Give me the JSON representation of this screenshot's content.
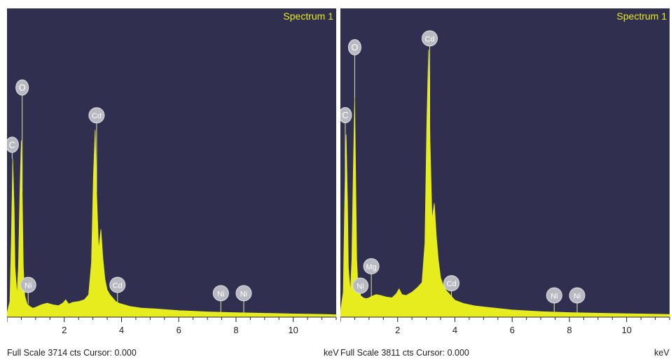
{
  "colors": {
    "background": "#312f4f",
    "spectrum": "#e6ec1e",
    "peak_line": "#d9eba0",
    "marker_fill": "#b9b9c1",
    "marker_text": "#ffffff",
    "spectrum_label": "#e6ec1e",
    "axis": "#222222"
  },
  "chart_data": [
    {
      "type": "area",
      "title": "Spectrum 1",
      "xlabel": "keV",
      "xlim": [
        0,
        11.5
      ],
      "xticks": [
        2,
        4,
        6,
        8,
        10
      ],
      "ylim": [
        0,
        3714
      ],
      "footer": "Full Scale 3714 cts Cursor: 0.000",
      "x": [
        0.0,
        0.1,
        0.15,
        0.2,
        0.25,
        0.28,
        0.35,
        0.4,
        0.45,
        0.5,
        0.53,
        0.57,
        0.62,
        0.7,
        0.8,
        0.9,
        1.0,
        1.2,
        1.4,
        1.6,
        1.8,
        1.95,
        2.05,
        2.15,
        2.3,
        2.5,
        2.7,
        2.85,
        2.95,
        3.02,
        3.08,
        3.13,
        3.2,
        3.28,
        3.35,
        3.42,
        3.5,
        3.6,
        3.7,
        3.8,
        3.9,
        4.0,
        4.3,
        4.7,
        5.2,
        6.0,
        7.0,
        8.0,
        9.0,
        10.0,
        11.0,
        11.5
      ],
      "y": [
        40,
        180,
        900,
        1900,
        1300,
        600,
        250,
        600,
        1500,
        2120,
        1500,
        600,
        250,
        150,
        120,
        100,
        110,
        140,
        160,
        140,
        130,
        160,
        200,
        150,
        170,
        180,
        200,
        260,
        650,
        1700,
        2250,
        1500,
        800,
        1050,
        700,
        450,
        320,
        260,
        220,
        180,
        160,
        150,
        120,
        100,
        90,
        70,
        55,
        45,
        38,
        30,
        25,
        20
      ],
      "markers": [
        {
          "label": "C",
          "x": 0.18,
          "y": 2070
        },
        {
          "label": "O",
          "x": 0.53,
          "y": 2760
        },
        {
          "label": "Cd",
          "x": 3.13,
          "y": 2425
        },
        {
          "label": "Ni",
          "x": 0.74,
          "y": 380
        },
        {
          "label": "Cd",
          "x": 3.86,
          "y": 380
        },
        {
          "label": "Ni",
          "x": 7.47,
          "y": 280
        },
        {
          "label": "Ni",
          "x": 8.27,
          "y": 280
        }
      ]
    },
    {
      "type": "area",
      "title": "Spectrum 1",
      "xlabel": "keV",
      "xlim": [
        0,
        11.5
      ],
      "xticks": [
        2,
        4,
        6,
        8,
        10
      ],
      "ylim": [
        0,
        3811
      ],
      "footer": "Full Scale 3811 cts Cursor: 0.000",
      "x": [
        0.0,
        0.1,
        0.15,
        0.2,
        0.25,
        0.28,
        0.35,
        0.4,
        0.45,
        0.5,
        0.53,
        0.57,
        0.62,
        0.7,
        0.8,
        0.9,
        1.0,
        1.1,
        1.25,
        1.4,
        1.6,
        1.8,
        1.95,
        2.05,
        2.15,
        2.3,
        2.5,
        2.7,
        2.85,
        2.95,
        3.02,
        3.08,
        3.13,
        3.2,
        3.28,
        3.35,
        3.42,
        3.5,
        3.6,
        3.7,
        3.8,
        3.9,
        4.0,
        4.3,
        4.7,
        5.2,
        6.0,
        7.0,
        8.0,
        9.0,
        10.0,
        11.0,
        11.5
      ],
      "y": [
        60,
        300,
        1400,
        2250,
        1400,
        600,
        300,
        700,
        1800,
        2700,
        1800,
        700,
        350,
        260,
        230,
        220,
        230,
        250,
        270,
        260,
        240,
        230,
        280,
        340,
        270,
        260,
        300,
        360,
        420,
        900,
        2400,
        3300,
        2200,
        1200,
        1400,
        1000,
        700,
        480,
        380,
        320,
        280,
        240,
        200,
        160,
        130,
        110,
        80,
        60,
        48,
        40,
        34,
        28,
        24
      ],
      "markers": [
        {
          "label": "C",
          "x": 0.17,
          "y": 2490
        },
        {
          "label": "O",
          "x": 0.5,
          "y": 3330
        },
        {
          "label": "Cd",
          "x": 3.12,
          "y": 3440
        },
        {
          "label": "Ni",
          "x": 0.7,
          "y": 380
        },
        {
          "label": "Mg",
          "x": 1.08,
          "y": 620
        },
        {
          "label": "Cd",
          "x": 3.88,
          "y": 410
        },
        {
          "label": "Ni",
          "x": 7.47,
          "y": 260
        },
        {
          "label": "Ni",
          "x": 8.27,
          "y": 260
        }
      ]
    }
  ]
}
